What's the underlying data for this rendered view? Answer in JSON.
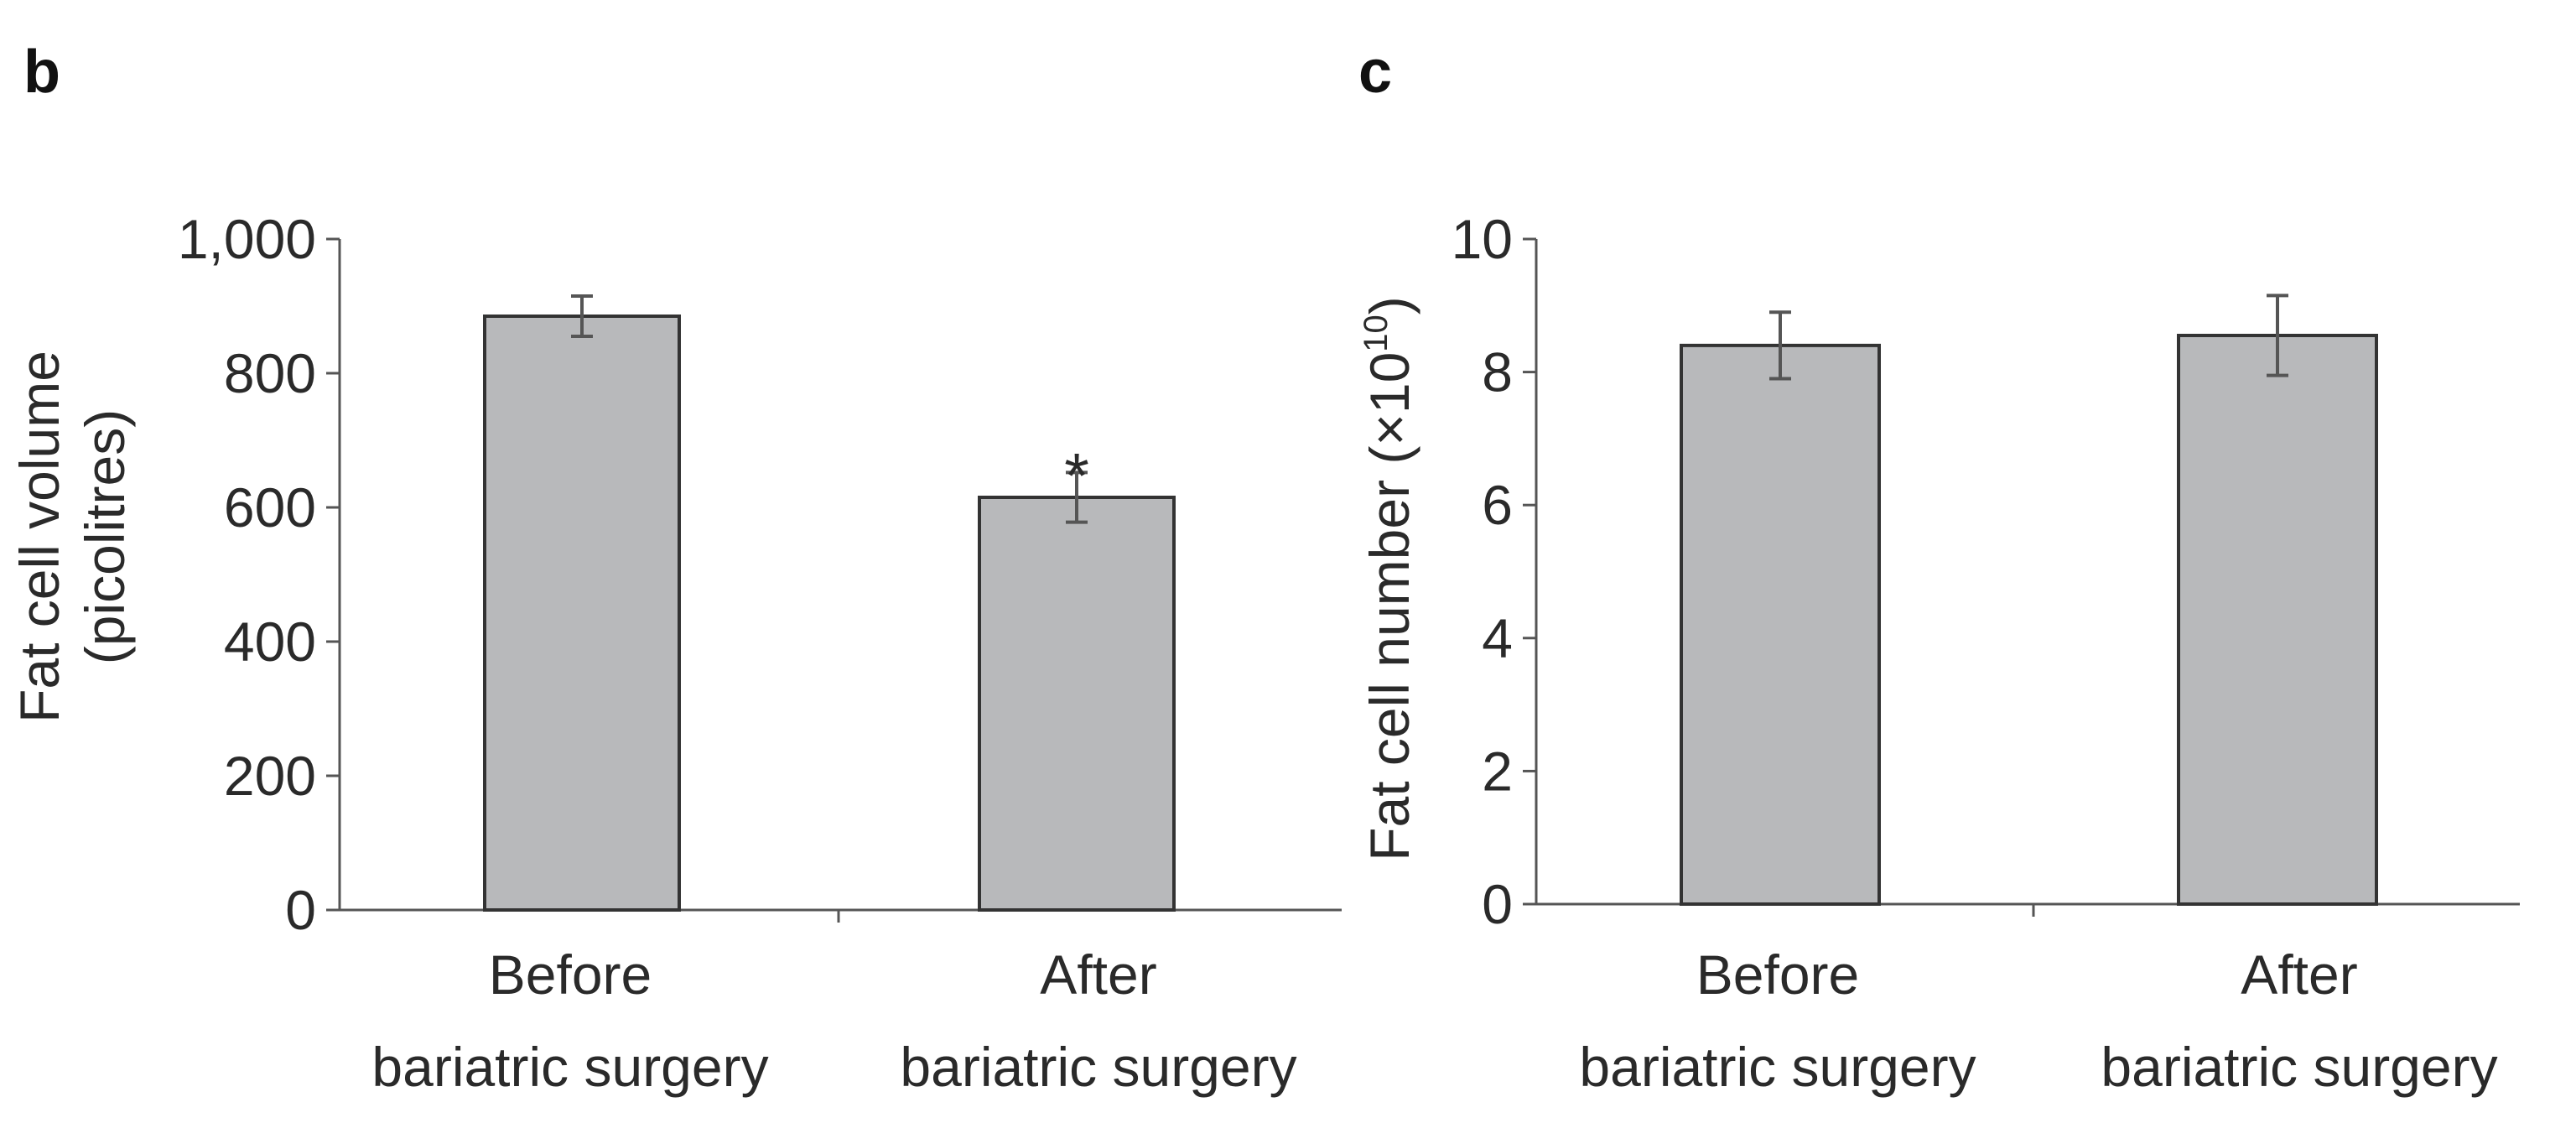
{
  "chart_data": [
    {
      "type": "bar",
      "panel": "b",
      "title": "",
      "categories": [
        [
          "Before",
          "bariatric surgery"
        ],
        [
          "After",
          "bariatric surgery"
        ]
      ],
      "values": [
        885,
        615
      ],
      "errors": [
        30,
        37
      ],
      "annotations": [
        "",
        "*"
      ],
      "ylabel": [
        "Fat cell volume",
        "(picolitres)"
      ],
      "ylim": [
        0,
        1000
      ],
      "yticks": [
        0,
        200,
        400,
        600,
        800,
        1000
      ],
      "ytick_labels": [
        "0",
        "200",
        "400",
        "600",
        "800",
        "1,000"
      ],
      "xlabel": "",
      "grid": false,
      "bar_color": "#b8b9bb"
    },
    {
      "type": "bar",
      "panel": "c",
      "title": "",
      "categories": [
        [
          "Before",
          "bariatric surgery"
        ],
        [
          "After",
          "bariatric surgery"
        ]
      ],
      "values": [
        8.4,
        8.55
      ],
      "errors": [
        0.5,
        0.6
      ],
      "annotations": [
        "",
        ""
      ],
      "ylabel": [
        "Fat cell number (×10",
        "10",
        ")"
      ],
      "ylim": [
        0,
        10
      ],
      "yticks": [
        0,
        2,
        4,
        6,
        8,
        10
      ],
      "ytick_labels": [
        "0",
        "2",
        "4",
        "6",
        "8",
        "10"
      ],
      "xlabel": "",
      "grid": false,
      "bar_color": "#b8b9bb"
    }
  ]
}
